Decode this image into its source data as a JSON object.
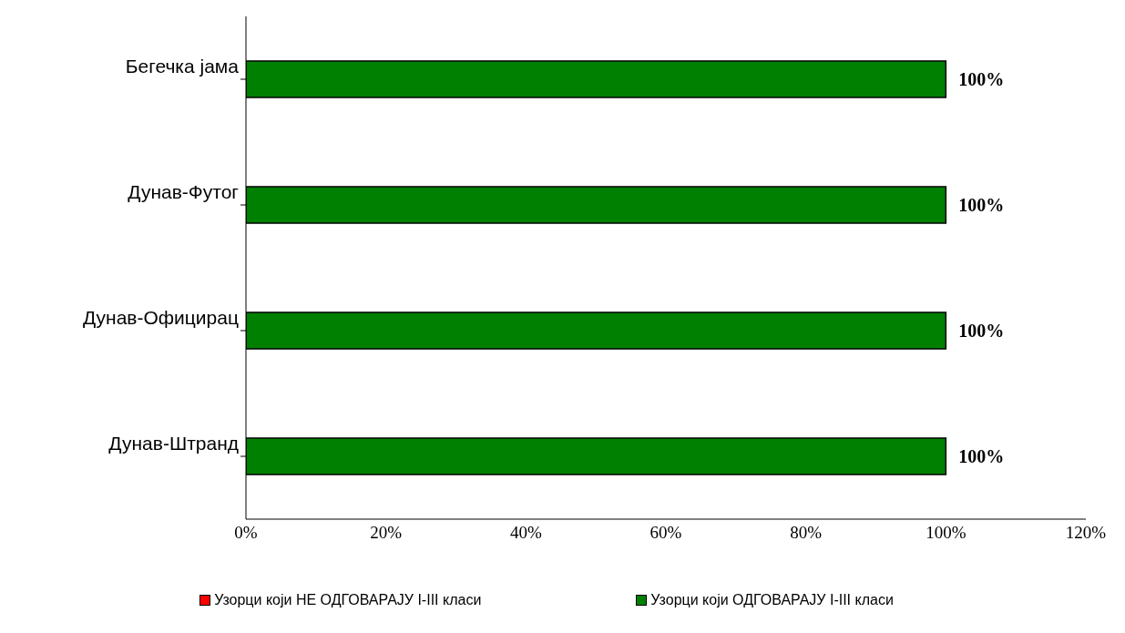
{
  "chart_data": {
    "type": "bar",
    "orientation": "horizontal",
    "stacked": true,
    "categories": [
      "Бегечка јама",
      "Дунав-Футог",
      "Дунав-Официрац",
      "Дунав-Штранд"
    ],
    "series": [
      {
        "name": "Узорци који НЕ ОДГОВАРАЈУ I-III класи",
        "color": "#ff0000",
        "values": [
          0,
          0,
          0,
          0
        ]
      },
      {
        "name": "Узорци који ОДГОВАРАЈУ I-III класи",
        "color": "#008000",
        "values": [
          100,
          100,
          100,
          100
        ],
        "value_labels": [
          "100%",
          "100%",
          "100%",
          "100%"
        ]
      }
    ],
    "xlim": [
      0,
      120
    ],
    "xticks": [
      {
        "value": 0,
        "label": "0%"
      },
      {
        "value": 20,
        "label": "20%"
      },
      {
        "value": 40,
        "label": "40%"
      },
      {
        "value": 60,
        "label": "60%"
      },
      {
        "value": 80,
        "label": "80%"
      },
      {
        "value": 100,
        "label": "100%"
      },
      {
        "value": 120,
        "label": "120%"
      }
    ],
    "grid": false,
    "legend": "bottom"
  }
}
